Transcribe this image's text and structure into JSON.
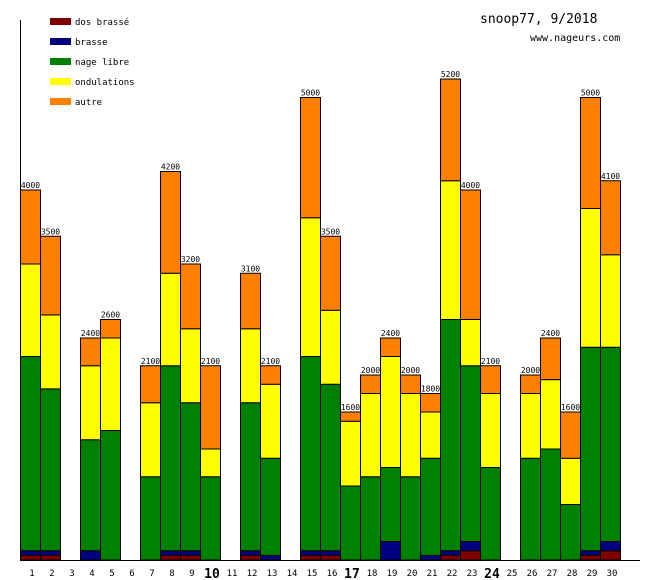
{
  "chart_data": {
    "type": "bar",
    "stacked": true,
    "title": "snoop77, 9/2018",
    "subtitle": "www.nageurs.com",
    "xlabel": "",
    "ylabel": "",
    "ylim": [
      0,
      5600
    ],
    "grid": false,
    "legend_placement": "top-left",
    "categories": [
      "1",
      "2",
      "3",
      "4",
      "5",
      "6",
      "7",
      "8",
      "9",
      "10",
      "11",
      "12",
      "13",
      "14",
      "15",
      "16",
      "17",
      "18",
      "19",
      "20",
      "21",
      "22",
      "23",
      "24",
      "25",
      "26",
      "27",
      "28",
      "29",
      "30"
    ],
    "bold_categories": [
      "10",
      "17",
      "24"
    ],
    "totals": [
      4000,
      3500,
      0,
      2400,
      2600,
      0,
      2100,
      4200,
      3200,
      2100,
      0,
      3100,
      2100,
      0,
      5000,
      3500,
      1600,
      2000,
      2400,
      2000,
      1800,
      5200,
      4000,
      2100,
      0,
      2000,
      2400,
      1600,
      5000,
      4100
    ],
    "series": [
      {
        "name": "dos brassé",
        "color": "#800000",
        "values": [
          50,
          50,
          0,
          0,
          0,
          0,
          0,
          50,
          50,
          0,
          0,
          50,
          0,
          0,
          50,
          50,
          0,
          0,
          0,
          0,
          0,
          50,
          100,
          0,
          0,
          0,
          0,
          0,
          50,
          100
        ]
      },
      {
        "name": "brasse",
        "color": "#000080",
        "values": [
          50,
          50,
          0,
          100,
          0,
          0,
          0,
          50,
          50,
          0,
          0,
          50,
          50,
          0,
          50,
          50,
          0,
          0,
          200,
          0,
          50,
          50,
          100,
          0,
          0,
          0,
          0,
          0,
          50,
          100
        ]
      },
      {
        "name": "nage libre",
        "color": "#008000",
        "values": [
          2100,
          1750,
          0,
          1200,
          1400,
          0,
          900,
          2000,
          1600,
          900,
          0,
          1600,
          1050,
          0,
          2100,
          1800,
          800,
          900,
          800,
          900,
          1050,
          2500,
          1900,
          1000,
          0,
          1100,
          1200,
          600,
          2200,
          2100
        ]
      },
      {
        "name": "ondulations",
        "color": "#ffff00",
        "values": [
          1000,
          800,
          0,
          800,
          1000,
          0,
          800,
          1000,
          800,
          300,
          0,
          800,
          800,
          0,
          1500,
          800,
          700,
          900,
          1200,
          900,
          500,
          1500,
          500,
          800,
          0,
          700,
          750,
          500,
          1500,
          1000
        ]
      },
      {
        "name": "autre",
        "color": "#ff8000",
        "values": [
          800,
          850,
          0,
          300,
          200,
          0,
          400,
          1100,
          700,
          900,
          0,
          600,
          200,
          0,
          1300,
          800,
          100,
          200,
          200,
          200,
          200,
          1100,
          1400,
          300,
          0,
          200,
          450,
          500,
          1200,
          800
        ]
      }
    ]
  }
}
